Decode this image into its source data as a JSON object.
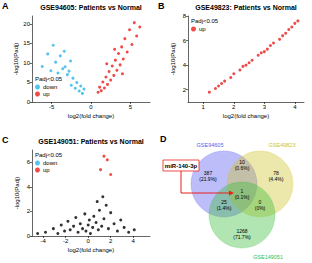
{
  "chart_data": [
    {
      "type": "scatter",
      "panel": "A",
      "title": "GSE94605: Patients vs Normal",
      "x_label": "log2(fold change)",
      "y_label": "-log10(Padj)",
      "xlim": [
        -7.5,
        7.5
      ],
      "xticks": [
        -5,
        0,
        5
      ],
      "ylim": [
        0,
        22
      ],
      "yticks": [
        0,
        5,
        10,
        15,
        20
      ],
      "grid": false,
      "legend": "lower left",
      "legend_title": "Padj<0.05",
      "marker": "circle",
      "series": [
        {
          "name": "down",
          "color": "#29b5e8",
          "values": [
            [
              -6.2,
              9.1
            ],
            [
              -5.5,
              12.3
            ],
            [
              -5.1,
              8.0
            ],
            [
              -4.8,
              14.5
            ],
            [
              -4.5,
              10.2
            ],
            [
              -4.2,
              7.4
            ],
            [
              -3.9,
              11.8
            ],
            [
              -3.6,
              8.5
            ],
            [
              -3.3,
              9.0
            ],
            [
              -3.0,
              7.0
            ],
            [
              -2.8,
              7.9
            ],
            [
              -2.5,
              4.3
            ],
            [
              -2.3,
              6.1
            ],
            [
              -2.0,
              3.5
            ],
            [
              -1.8,
              5.0
            ],
            [
              -1.5,
              2.8
            ],
            [
              -1.3,
              4.1
            ],
            [
              -1.1,
              2.2
            ],
            [
              -0.9,
              3.3
            ],
            [
              -3.4,
              13.0
            ],
            [
              -2.6,
              10.5
            ]
          ]
        },
        {
          "name": "up",
          "color": "#e8211c",
          "values": [
            [
              0.9,
              2.5
            ],
            [
              1.1,
              3.8
            ],
            [
              1.3,
              2.9
            ],
            [
              1.5,
              5.1
            ],
            [
              1.7,
              3.6
            ],
            [
              1.9,
              6.4
            ],
            [
              2.1,
              4.5
            ],
            [
              2.3,
              7.8
            ],
            [
              2.5,
              5.6
            ],
            [
              2.7,
              9.2
            ],
            [
              2.9,
              6.8
            ],
            [
              3.1,
              10.7
            ],
            [
              3.3,
              8.1
            ],
            [
              3.5,
              12.4
            ],
            [
              3.7,
              9.5
            ],
            [
              3.9,
              14.1
            ],
            [
              4.1,
              11.0
            ],
            [
              4.3,
              16.2
            ],
            [
              4.6,
              12.8
            ],
            [
              4.9,
              18.5
            ],
            [
              5.2,
              14.7
            ],
            [
              5.5,
              20.3
            ],
            [
              5.8,
              16.9
            ],
            [
              6.2,
              19.2
            ],
            [
              3.0,
              13.5
            ],
            [
              4.0,
              7.2
            ],
            [
              2.0,
              9.8
            ]
          ]
        }
      ]
    },
    {
      "type": "scatter",
      "panel": "B",
      "title": "GSE49823: Patients vs Normal",
      "x_label": "log2(fold change)",
      "y_label": "-log10(Padj)",
      "xlim": [
        0.5,
        4.3
      ],
      "xticks": [
        1,
        2,
        3,
        4
      ],
      "ylim": [
        1,
        8
      ],
      "yticks": [
        2,
        4,
        6,
        8
      ],
      "grid": false,
      "legend": "upper left",
      "legend_title": "Padj<0.05",
      "marker": "circle",
      "series": [
        {
          "name": "up",
          "color": "#e8211c",
          "values": [
            [
              1.2,
              1.8
            ],
            [
              1.4,
              2.1
            ],
            [
              1.6,
              2.5
            ],
            [
              1.7,
              2.7
            ],
            [
              1.9,
              3.0
            ],
            [
              2.0,
              3.3
            ],
            [
              2.2,
              3.6
            ],
            [
              2.3,
              3.9
            ],
            [
              2.5,
              4.2
            ],
            [
              2.6,
              4.4
            ],
            [
              2.8,
              4.8
            ],
            [
              2.9,
              5.0
            ],
            [
              3.1,
              5.3
            ],
            [
              3.2,
              5.6
            ],
            [
              3.3,
              5.8
            ],
            [
              3.5,
              6.1
            ],
            [
              3.6,
              6.4
            ],
            [
              3.7,
              6.6
            ],
            [
              3.8,
              6.9
            ],
            [
              3.9,
              7.1
            ],
            [
              4.0,
              7.4
            ],
            [
              4.1,
              7.6
            ],
            [
              1.5,
              2.3
            ],
            [
              2.4,
              4.0
            ],
            [
              3.0,
              5.1
            ]
          ]
        }
      ]
    },
    {
      "type": "scatter",
      "panel": "C",
      "title": "GSE149051: Patients vs Normal",
      "x_label": "log2(fold change)",
      "y_label": "-log10(Padj)",
      "xlim": [
        -5,
        5.5
      ],
      "xticks": [
        -4,
        -2,
        0,
        2,
        4
      ],
      "ylim": [
        0,
        7
      ],
      "yticks": [
        0,
        2,
        4,
        6
      ],
      "grid": false,
      "legend": "upper left",
      "legend_title": "Padj<0.05",
      "marker": "circle",
      "series": [
        {
          "color": "#000000",
          "values": [
            [
              -3.8,
              0.3
            ],
            [
              -3.1,
              0.6
            ],
            [
              -2.7,
              0.2
            ],
            [
              -2.4,
              0.9
            ],
            [
              -2.1,
              0.4
            ],
            [
              -1.8,
              1.2
            ],
            [
              -1.6,
              0.5
            ],
            [
              -1.3,
              0.8
            ],
            [
              -1.1,
              1.5
            ],
            [
              -0.9,
              0.3
            ],
            [
              -0.7,
              1.0
            ],
            [
              -0.5,
              0.6
            ],
            [
              -0.3,
              1.8
            ],
            [
              -0.2,
              0.4
            ],
            [
              0,
              0.9
            ],
            [
              0.1,
              1.3
            ],
            [
              0.2,
              0.2
            ],
            [
              0.4,
              0.7
            ],
            [
              0.5,
              1.6
            ],
            [
              0.7,
              1.1
            ],
            [
              0.9,
              0.5
            ],
            [
              1.0,
              2.1
            ],
            [
              1.2,
              0.8
            ],
            [
              1.4,
              1.4
            ],
            [
              1.6,
              2.5
            ],
            [
              1.8,
              0.6
            ],
            [
              2.0,
              1.9
            ],
            [
              2.3,
              1.0
            ],
            [
              2.6,
              0.4
            ],
            [
              2.9,
              1.3
            ],
            [
              3.2,
              0.7
            ],
            [
              3.6,
              0.3
            ],
            [
              4.1,
              0.5
            ],
            [
              -4.5,
              0.2
            ],
            [
              0.8,
              2.8
            ],
            [
              1.3,
              3.2
            ]
          ]
        },
        {
          "name": "down",
          "color": "#29b5e8",
          "values": []
        },
        {
          "name": "up",
          "color": "#e8211c",
          "values": [
            [
              1.4,
              6.5
            ],
            [
              1.7,
              6.2
            ],
            [
              1.1,
              5.4
            ],
            [
              2.0,
              5.0
            ]
          ]
        }
      ]
    }
  ],
  "venn": {
    "panel": "D",
    "sets": [
      {
        "name": "GSE94605",
        "color": "#5b5bef"
      },
      {
        "name": "GSE49823",
        "color": "#cfc22e"
      },
      {
        "name": "GSE149051",
        "color": "#3cbd3c"
      }
    ],
    "regions": [
      {
        "sets": [
          "GSE94605"
        ],
        "count": 387,
        "percent": "(21.9%)"
      },
      {
        "sets": [
          "GSE49823"
        ],
        "count": 78,
        "percent": "(4.4%)"
      },
      {
        "sets": [
          "GSE149051"
        ],
        "count": 1268,
        "percent": "(71.7%)"
      },
      {
        "sets": [
          "GSE94605",
          "GSE49823"
        ],
        "count": 10,
        "percent": "(0.6%)"
      },
      {
        "sets": [
          "GSE94605",
          "GSE149051"
        ],
        "count": 25,
        "percent": "(1.4%)"
      },
      {
        "sets": [
          "GSE49823",
          "GSE149051"
        ],
        "count": 0,
        "percent": "(0%)"
      },
      {
        "sets": [
          "GSE94605",
          "GSE49823",
          "GSE149051"
        ],
        "count": 1,
        "percent": "(0.1%)"
      }
    ],
    "annotation": {
      "text": "miR-140-3p",
      "sets": [
        "GSE94605",
        "GSE49823",
        "GSE149051"
      ]
    }
  }
}
